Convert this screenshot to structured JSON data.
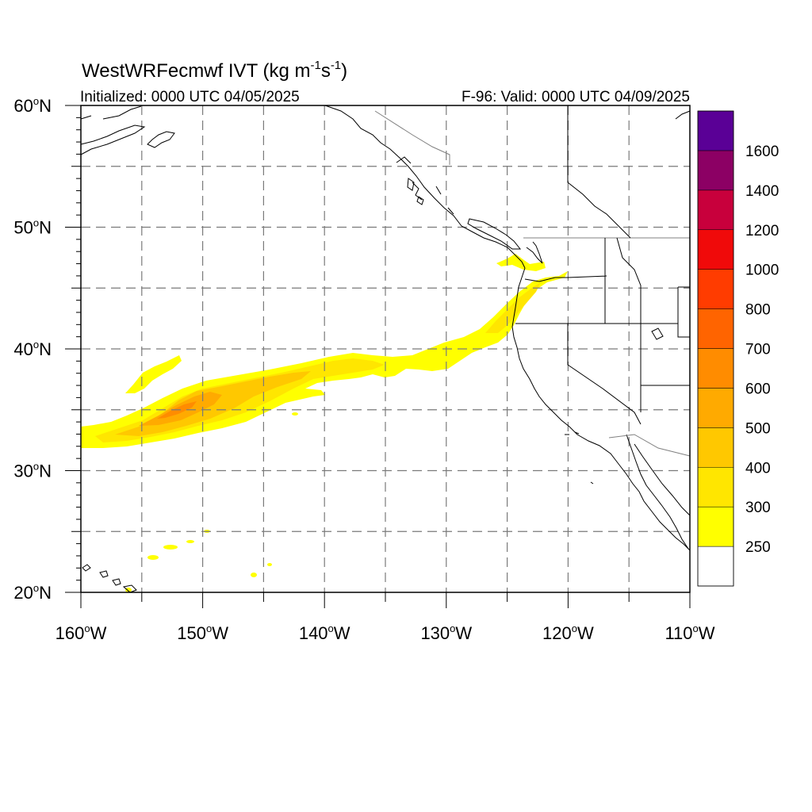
{
  "title": {
    "main": "WestWRFecmwf IVT (kg m",
    "exp1": "-1",
    "mid": "s",
    "exp2": "-1",
    "close": ")"
  },
  "subtitle_left": "Initialized: 0000 UTC 04/05/2025",
  "subtitle_right": "F-96: Valid: 0000 UTC 04/09/2025",
  "map": {
    "lon_range": [
      -160,
      -110
    ],
    "lat_range": [
      20,
      60
    ],
    "lon_tick_labels": [
      {
        "lon": -160,
        "num": "160",
        "hemi": "W"
      },
      {
        "lon": -150,
        "num": "150",
        "hemi": "W"
      },
      {
        "lon": -140,
        "num": "140",
        "hemi": "W"
      },
      {
        "lon": -130,
        "num": "130",
        "hemi": "W"
      },
      {
        "lon": -120,
        "num": "120",
        "hemi": "W"
      },
      {
        "lon": -110,
        "num": "110",
        "hemi": "W"
      }
    ],
    "lat_tick_labels": [
      {
        "lat": 60,
        "num": "60",
        "hemi": "N"
      },
      {
        "lat": 50,
        "num": "50",
        "hemi": "N"
      },
      {
        "lat": 40,
        "num": "40",
        "hemi": "N"
      },
      {
        "lat": 30,
        "num": "30",
        "hemi": "N"
      },
      {
        "lat": 20,
        "num": "20",
        "hemi": "N"
      }
    ],
    "degree_symbol": "o",
    "grid_lons": [
      -155,
      -150,
      -145,
      -140,
      -135,
      -130,
      -125,
      -120,
      -115
    ],
    "grid_lats": [
      55,
      50,
      45,
      40,
      35,
      30,
      25
    ],
    "grid": "dashed",
    "coast_color": "#000000",
    "border_color": "#808080"
  },
  "colorbar": {
    "levels": [
      "250",
      "300",
      "400",
      "500",
      "600",
      "700",
      "800",
      "1000",
      "1200",
      "1400",
      "1600"
    ],
    "colors": [
      "#ffffff",
      "#ffff00",
      "#ffe600",
      "#ffc800",
      "#ffaa00",
      "#ff8c00",
      "#ff6400",
      "#ff3c00",
      "#f00a0a",
      "#c8003c",
      "#8c0064",
      "#5a0096"
    ]
  },
  "ivt_bands": [
    {
      "level": "250",
      "color": "#ffff00"
    },
    {
      "level": "300",
      "color": "#ffe600"
    },
    {
      "level": "400",
      "color": "#ffc800"
    },
    {
      "level": "500",
      "color": "#ffaa00"
    },
    {
      "level": "600",
      "color": "#ff8c00"
    }
  ]
}
